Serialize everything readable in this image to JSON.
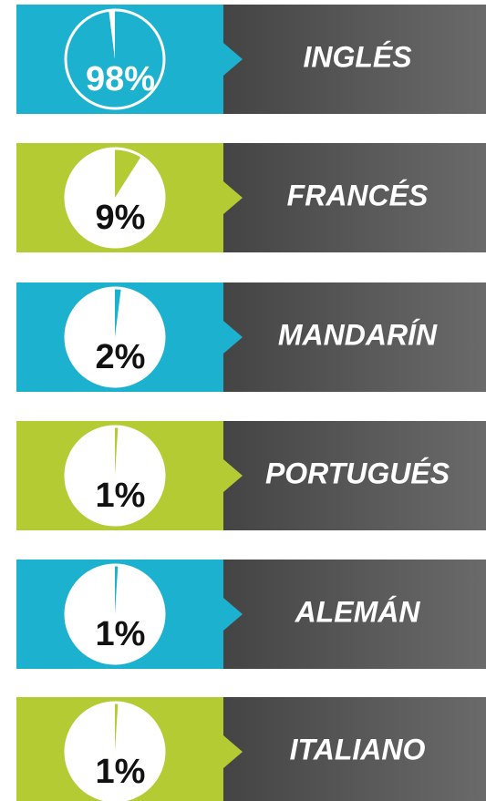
{
  "chart_data": [
    {
      "type": "pie",
      "title": "INGLÉS",
      "values": [
        98
      ],
      "value_labels": [
        "98%"
      ],
      "color": "#1cb2cf"
    },
    {
      "type": "pie",
      "title": "FRANCÉS",
      "values": [
        9
      ],
      "value_labels": [
        "9%"
      ],
      "color": "#b5cb34"
    },
    {
      "type": "pie",
      "title": "MANDARÍN",
      "values": [
        2
      ],
      "value_labels": [
        "2%"
      ],
      "color": "#1cb2cf"
    },
    {
      "type": "pie",
      "title": "PORTUGUÉS",
      "values": [
        1
      ],
      "value_labels": [
        "1%"
      ],
      "color": "#b5cb34"
    },
    {
      "type": "pie",
      "title": "ALEMÁN",
      "values": [
        1
      ],
      "value_labels": [
        "1%"
      ],
      "color": "#1cb2cf"
    },
    {
      "type": "pie",
      "title": "ITALIANO",
      "values": [
        1
      ],
      "value_labels": [
        "1%"
      ],
      "color": "#b5cb34"
    }
  ]
}
